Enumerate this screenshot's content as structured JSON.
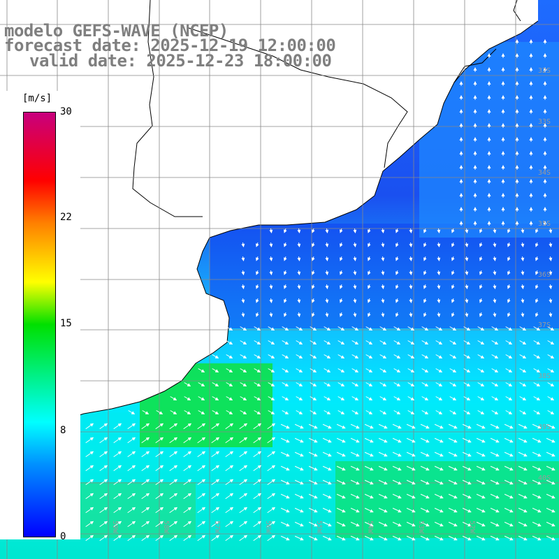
{
  "title": {
    "model": "modelo GEFS-WAVE (NCEP)",
    "forecast_date": "forecast date: 2025-12-19 12:00:00",
    "valid_date": "valid date: 2025-12-23 18:00:00"
  },
  "colorbar": {
    "unit": "[m/s]",
    "ticks": [
      "30",
      "22",
      "15",
      "8",
      "0"
    ],
    "colors": [
      "#0000ff",
      "#0090ff",
      "#00ffff",
      "#00e000",
      "#ffff00",
      "#ff7f00",
      "#ff0000",
      "#c8007e"
    ]
  },
  "grid_labels": {
    "latitude": [
      "32S",
      "33S",
      "34S",
      "35S",
      "36S",
      "37S",
      "38S",
      "39S",
      "40S"
    ],
    "longitude": [
      "61W",
      "60W",
      "59W",
      "58W",
      "57W",
      "56W",
      "55W",
      "54W",
      "53W",
      "52W"
    ]
  },
  "colors": {
    "land": "#ffffff",
    "coastline": "#000000",
    "grid": "#888888",
    "arrows": "#ffffff",
    "title_text": "#7f7f7f"
  }
}
